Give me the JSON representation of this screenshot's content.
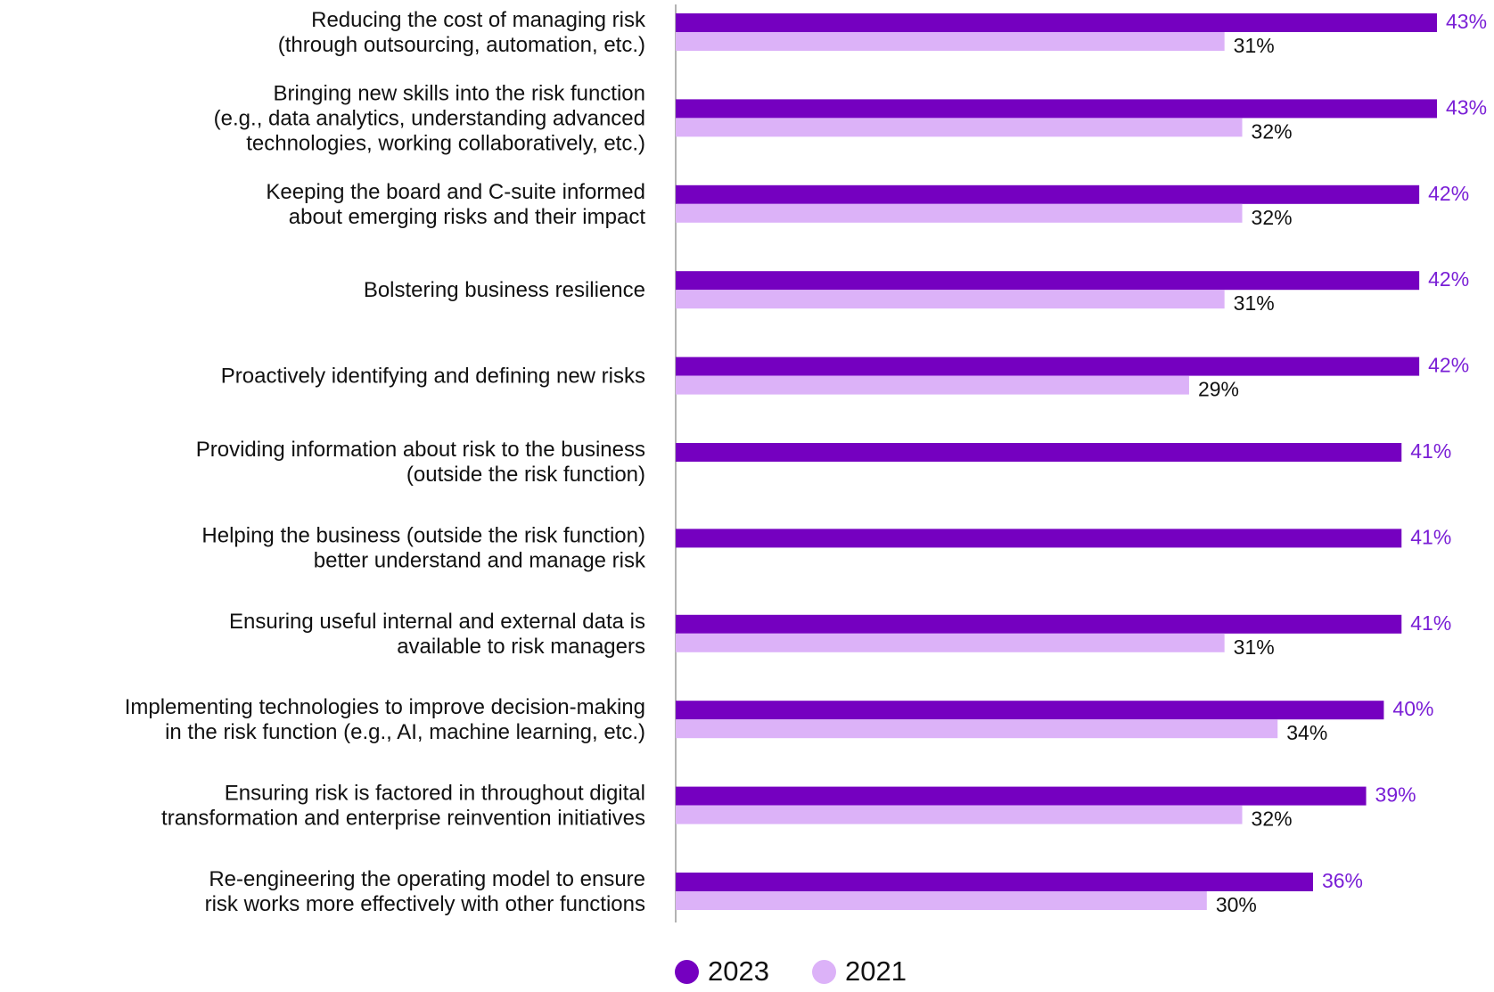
{
  "colors": {
    "series_2023": "#7500c0",
    "series_2021": "#dcb2f8",
    "label_2023": "#7a1fd6",
    "label_2021": "#111111",
    "axis": "#9a9a9a"
  },
  "chart_data": {
    "type": "bar",
    "orientation": "horizontal",
    "categories": [
      [
        "Reducing the cost of managing risk",
        "(through outsourcing, automation, etc.)"
      ],
      [
        "Bringing new skills into the risk function",
        "(e.g., data analytics, understanding advanced",
        "technologies, working collaboratively, etc.)"
      ],
      [
        "Keeping the board and C-suite informed",
        "about emerging risks and their impact"
      ],
      [
        "Bolstering business resilience"
      ],
      [
        "Proactively identifying and defining new risks"
      ],
      [
        "Providing information about risk to the business",
        "(outside the risk function)"
      ],
      [
        "Helping the business (outside the risk function)",
        "better understand and manage risk"
      ],
      [
        "Ensuring useful internal and external data is",
        "available to risk managers"
      ],
      [
        "Implementing technologies to improve decision-making",
        "in the risk function (e.g., AI, machine learning, etc.)"
      ],
      [
        "Ensuring risk is factored in throughout digital",
        "transformation and enterprise reinvention initiatives"
      ],
      [
        "Re-engineering the operating model to ensure",
        "risk works more effectively with other functions"
      ]
    ],
    "series": [
      {
        "name": "2023",
        "values": [
          43,
          43,
          42,
          42,
          42,
          41,
          41,
          41,
          40,
          39,
          36
        ],
        "labels": [
          "43%",
          "43%",
          "42%",
          "42%",
          "42%",
          "41%",
          "41%",
          "41%",
          "40%",
          "39%",
          "36%"
        ]
      },
      {
        "name": "2021",
        "values": [
          31,
          32,
          32,
          31,
          29,
          null,
          null,
          31,
          34,
          32,
          30
        ],
        "labels": [
          "31%",
          "32%",
          "32%",
          "31%",
          "29%",
          null,
          null,
          "31%",
          "34%",
          "32%",
          "30%"
        ]
      }
    ],
    "xlim": [
      0,
      43
    ],
    "grid": false,
    "legend_position": "bottom"
  },
  "legend": {
    "items": [
      {
        "label": "2023"
      },
      {
        "label": "2021"
      }
    ]
  }
}
